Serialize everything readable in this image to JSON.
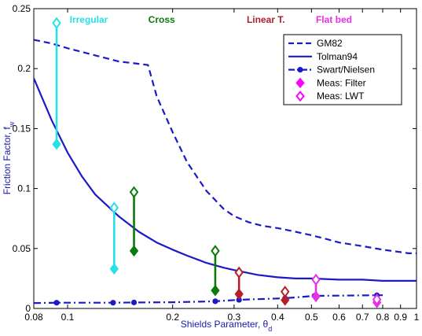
{
  "chart_data": {
    "type": "line",
    "title": "",
    "xlabel": "Shields Parameter, θ",
    "xlabel_sub": "d",
    "ylabel": "Friction Factor, f",
    "ylabel_sub": "w",
    "xscale": "log",
    "xlim": [
      0.08,
      1
    ],
    "ylim": [
      0,
      0.25
    ],
    "grid": false,
    "legend_position": "top-right",
    "x_ticks": [
      {
        "value": 0.08,
        "label": "0.08"
      },
      {
        "value": 0.1,
        "label": "0.1"
      },
      {
        "value": 0.2,
        "label": "0.2"
      },
      {
        "value": 0.3,
        "label": "0.3"
      },
      {
        "value": 0.4,
        "label": "0.4"
      },
      {
        "value": 0.5,
        "label": "0.5"
      },
      {
        "value": 0.6,
        "label": "0.6"
      },
      {
        "value": 0.7,
        "label": "0.7"
      },
      {
        "value": 0.8,
        "label": "0.8"
      },
      {
        "value": 0.9,
        "label": "0.9"
      },
      {
        "value": 1,
        "label": "1"
      }
    ],
    "y_ticks": [
      {
        "value": 0,
        "label": "0"
      },
      {
        "value": 0.05,
        "label": "0.05"
      },
      {
        "value": 0.1,
        "label": "0.1"
      },
      {
        "value": 0.15,
        "label": "0.15"
      },
      {
        "value": 0.2,
        "label": "0.2"
      },
      {
        "value": 0.25,
        "label": "0.25"
      }
    ],
    "regimes": [
      {
        "label": "Irregular",
        "x": 0.115,
        "color": "#27e0e8"
      },
      {
        "label": "Cross",
        "x": 0.186,
        "color": "#0a7a0a"
      },
      {
        "label": "Linear T.",
        "x": 0.37,
        "color": "#b3202a"
      },
      {
        "label": "Flat bed",
        "x": 0.58,
        "color": "#e830e8"
      }
    ],
    "series": [
      {
        "name": "GM82",
        "style": "dashed",
        "color": "#1a1ac8",
        "x": [
          0.08,
          0.09,
          0.1,
          0.12,
          0.14,
          0.16,
          0.17,
          0.18,
          0.2,
          0.22,
          0.25,
          0.28,
          0.3,
          0.33,
          0.36,
          0.4,
          0.45,
          0.5,
          0.55,
          0.6,
          0.7,
          0.8,
          0.9,
          0.95,
          1
        ],
        "y": [
          0.224,
          0.221,
          0.217,
          0.211,
          0.206,
          0.204,
          0.203,
          0.177,
          0.147,
          0.122,
          0.098,
          0.083,
          0.077,
          0.072,
          0.069,
          0.067,
          0.064,
          0.061,
          0.058,
          0.055,
          0.052,
          0.049,
          0.047,
          0.046,
          0.046
        ]
      },
      {
        "name": "Tolman94",
        "style": "solid",
        "color": "#1a1ac8",
        "x": [
          0.08,
          0.09,
          0.1,
          0.11,
          0.12,
          0.14,
          0.16,
          0.18,
          0.2,
          0.22,
          0.25,
          0.28,
          0.3,
          0.35,
          0.4,
          0.45,
          0.5,
          0.6,
          0.7,
          0.8,
          0.9,
          1
        ],
        "y": [
          0.192,
          0.157,
          0.13,
          0.11,
          0.095,
          0.077,
          0.064,
          0.055,
          0.049,
          0.044,
          0.038,
          0.034,
          0.032,
          0.028,
          0.026,
          0.025,
          0.025,
          0.024,
          0.024,
          0.023,
          0.023,
          0.023
        ]
      },
      {
        "name": "Swart/Nielsen",
        "style": "dashdot",
        "color": "#1a1ac8",
        "x": [
          0.08,
          0.093,
          0.135,
          0.155,
          0.2,
          0.265,
          0.31,
          0.42,
          0.51,
          0.77,
          0.8
        ],
        "y": [
          0.0045,
          0.0048,
          0.0048,
          0.005,
          0.0052,
          0.006,
          0.0072,
          0.0085,
          0.0105,
          0.011,
          0.011
        ],
        "markers_at": [
          0.093,
          0.135,
          0.155,
          0.265,
          0.31,
          0.42,
          0.51,
          0.77
        ]
      }
    ],
    "measurements": [
      {
        "theta": 0.093,
        "filter": 0.137,
        "lwt": 0.238,
        "color": "#27e0e8"
      },
      {
        "theta": 0.136,
        "filter": 0.033,
        "lwt": 0.084,
        "color": "#27e0e8"
      },
      {
        "theta": 0.155,
        "filter": 0.048,
        "lwt": 0.097,
        "color": "#0a7a0a"
      },
      {
        "theta": 0.265,
        "filter": 0.015,
        "lwt": 0.048,
        "color": "#0a7a0a"
      },
      {
        "theta": 0.31,
        "filter": 0.012,
        "lwt": 0.03,
        "color": "#b3202a"
      },
      {
        "theta": 0.42,
        "filter": 0.007,
        "lwt": 0.014,
        "color": "#b3202a"
      },
      {
        "theta": 0.515,
        "filter": 0.01,
        "lwt": 0.024,
        "color": "#e830e8"
      },
      {
        "theta": 0.77,
        "filter": 0.005,
        "lwt": 0.0075,
        "color": "#e830e8"
      }
    ],
    "legend": [
      {
        "label": "GM82",
        "kind": "dashed",
        "color": "#1a1ac8"
      },
      {
        "label": "Tolman94",
        "kind": "solid",
        "color": "#1a1ac8"
      },
      {
        "label": "Swart/Nielsen",
        "kind": "dashdot-dot",
        "color": "#1a1ac8"
      },
      {
        "label": "Meas: Filter",
        "kind": "filled-diamond",
        "color": "#ff00ff"
      },
      {
        "label": "Meas: LWT",
        "kind": "open-diamond",
        "color": "#ff00ff"
      }
    ]
  }
}
